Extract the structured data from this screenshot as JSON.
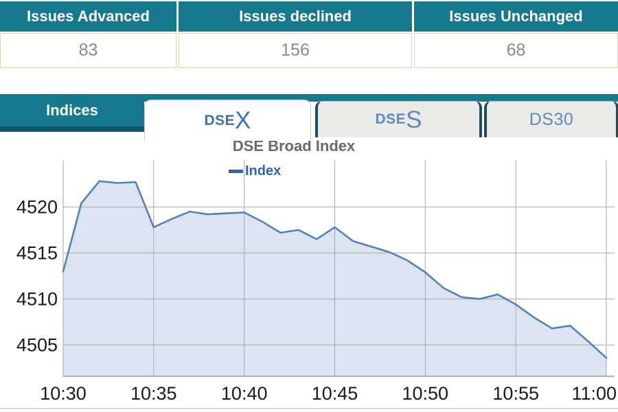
{
  "table": {
    "columns": [
      {
        "header": "Issues Advanced",
        "value": "83"
      },
      {
        "header": "Issues declined",
        "value": "156"
      },
      {
        "header": "Issues Unchanged",
        "value": "68"
      }
    ]
  },
  "tabbar": {
    "title": "Indices",
    "tabs": [
      {
        "small": "DSE",
        "big": "X",
        "active": true
      },
      {
        "small": "DSE",
        "big": "S",
        "active": false
      },
      {
        "small": "DS30",
        "big": "",
        "active": false
      }
    ]
  },
  "chart_data": {
    "type": "area",
    "title": "DSE Broad Index",
    "legend": "Index",
    "x_tick_labels": [
      "10:30",
      "10:35",
      "10:40",
      "10:45",
      "10:50",
      "10:55",
      "11:00"
    ],
    "x_times": [
      "10:30",
      "10:31",
      "10:32",
      "10:33",
      "10:34",
      "10:35",
      "10:36",
      "10:37",
      "10:38",
      "10:39",
      "10:40",
      "10:41",
      "10:42",
      "10:43",
      "10:44",
      "10:45",
      "10:46",
      "10:47",
      "10:48",
      "10:49",
      "10:50",
      "10:51",
      "10:52",
      "10:53",
      "10:54",
      "10:55",
      "10:56",
      "10:57",
      "10:58",
      "10:59",
      "11:00"
    ],
    "values": [
      4513.0,
      4520.4,
      4522.8,
      4522.6,
      4522.7,
      4517.8,
      4518.7,
      4519.5,
      4519.2,
      4519.3,
      4519.4,
      4518.4,
      4517.2,
      4517.5,
      4516.5,
      4517.8,
      4516.3,
      4515.7,
      4515.1,
      4514.2,
      4512.9,
      4511.2,
      4510.2,
      4510.0,
      4510.5,
      4509.4,
      4508.0,
      4506.8,
      4507.1,
      4505.4,
      4503.6
    ],
    "y_ticks": [
      4505,
      4510,
      4515,
      4520
    ],
    "ylim": [
      4501.6,
      4525.1
    ],
    "grid": true,
    "legend_position": "top-center"
  },
  "colors": {
    "teal": "#17798e",
    "teal_dark": "#0b5a6d",
    "table_border": "#d9d1c0",
    "value_text": "#8a8a8a",
    "tab_bg": "#eceae7",
    "tab_border_dark": "#1f4d63",
    "tab_text_active": "#3a72b2",
    "tab_text_inactive": "#5a8cbe",
    "title_text": "#6a6a6a",
    "legend_text": "#2f64a8",
    "line": "#5580b6",
    "fill": "#dce4f1",
    "grid": "#a6a6a6",
    "axis_text": "#1a1a1a"
  }
}
